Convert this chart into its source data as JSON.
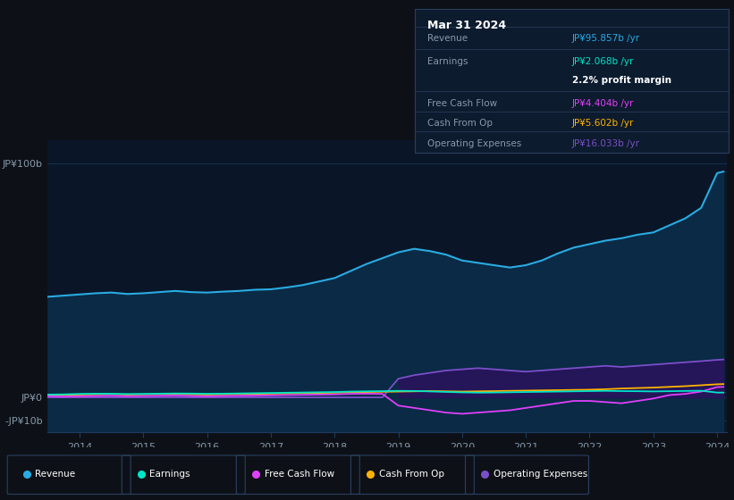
{
  "bg_color": "#0d1117",
  "plot_bg_color": "#0a1628",
  "grid_color": "#1e3a5f",
  "years": [
    2013.5,
    2013.75,
    2014.0,
    2014.25,
    2014.5,
    2014.75,
    2015.0,
    2015.25,
    2015.5,
    2015.75,
    2016.0,
    2016.25,
    2016.5,
    2016.75,
    2017.0,
    2017.25,
    2017.5,
    2017.75,
    2018.0,
    2018.25,
    2018.5,
    2018.75,
    2019.0,
    2019.25,
    2019.5,
    2019.75,
    2020.0,
    2020.25,
    2020.5,
    2020.75,
    2021.0,
    2021.25,
    2021.5,
    2021.75,
    2022.0,
    2022.25,
    2022.5,
    2022.75,
    2023.0,
    2023.25,
    2023.5,
    2023.75,
    2024.0,
    2024.1
  ],
  "revenue": [
    43,
    43.5,
    44,
    44.5,
    44.8,
    44.2,
    44.5,
    45.0,
    45.5,
    45.0,
    44.8,
    45.2,
    45.5,
    46.0,
    46.2,
    47.0,
    48.0,
    49.5,
    51.0,
    54.0,
    57.0,
    59.5,
    62.0,
    63.5,
    62.5,
    61.0,
    58.5,
    57.5,
    56.5,
    55.5,
    56.5,
    58.5,
    61.5,
    64.0,
    65.5,
    67.0,
    68.0,
    69.5,
    70.5,
    73.5,
    76.5,
    81.0,
    95.857,
    96.5
  ],
  "earnings": [
    1.2,
    1.3,
    1.5,
    1.6,
    1.55,
    1.45,
    1.5,
    1.6,
    1.7,
    1.65,
    1.55,
    1.6,
    1.7,
    1.8,
    1.9,
    2.0,
    2.1,
    2.2,
    2.3,
    2.5,
    2.6,
    2.7,
    2.8,
    2.75,
    2.55,
    2.35,
    2.15,
    2.05,
    2.1,
    2.2,
    2.3,
    2.4,
    2.5,
    2.6,
    2.7,
    2.8,
    2.7,
    2.65,
    2.55,
    2.65,
    2.75,
    2.85,
    2.068,
    2.068
  ],
  "free_cash_flow": [
    0.5,
    0.4,
    0.5,
    0.6,
    0.7,
    0.5,
    0.6,
    0.7,
    0.8,
    0.6,
    0.5,
    0.6,
    0.7,
    0.8,
    0.9,
    1.0,
    1.1,
    1.2,
    1.3,
    1.5,
    1.6,
    1.5,
    -3.5,
    -4.5,
    -5.5,
    -6.5,
    -7.0,
    -6.5,
    -6.0,
    -5.5,
    -4.5,
    -3.5,
    -2.5,
    -1.5,
    -1.5,
    -2.0,
    -2.5,
    -1.5,
    -0.5,
    1.0,
    1.5,
    2.5,
    4.404,
    4.5
  ],
  "cash_from_op": [
    1.0,
    1.1,
    1.2,
    1.3,
    1.4,
    1.2,
    1.3,
    1.4,
    1.5,
    1.3,
    1.2,
    1.3,
    1.4,
    1.5,
    1.6,
    1.7,
    1.8,
    1.9,
    2.0,
    2.2,
    2.3,
    2.4,
    2.5,
    2.6,
    2.7,
    2.6,
    2.5,
    2.6,
    2.7,
    2.8,
    2.9,
    3.0,
    3.1,
    3.2,
    3.3,
    3.5,
    3.8,
    4.0,
    4.2,
    4.5,
    4.8,
    5.2,
    5.602,
    5.7
  ],
  "operating_expenses": [
    0.0,
    0.0,
    0.0,
    0.0,
    0.0,
    0.0,
    0.0,
    0.0,
    0.0,
    0.0,
    0.0,
    0.0,
    0.0,
    0.0,
    0.0,
    0.0,
    0.0,
    0.0,
    0.0,
    0.0,
    0.0,
    0.0,
    8.0,
    9.5,
    10.5,
    11.5,
    12.0,
    12.5,
    12.0,
    11.5,
    11.0,
    11.5,
    12.0,
    12.5,
    13.0,
    13.5,
    13.0,
    13.5,
    14.0,
    14.5,
    15.0,
    15.5,
    16.033,
    16.2
  ],
  "colors": {
    "revenue": "#29abe2",
    "revenue_fill": "#0a2a45",
    "earnings": "#00e5c8",
    "free_cash_flow": "#e040fb",
    "cash_from_op": "#ffb300",
    "operating_expenses": "#7b4fc8",
    "operating_expenses_fill": "#2d1060"
  },
  "ylim": [
    -15,
    110
  ],
  "xlim": [
    2013.5,
    2024.15
  ],
  "yticks": [
    100,
    0,
    -10
  ],
  "ytick_labels": [
    "JP¥100b",
    "JP¥0",
    "-JP¥10b"
  ],
  "xtick_years": [
    2014,
    2015,
    2016,
    2017,
    2018,
    2019,
    2020,
    2021,
    2022,
    2023,
    2024
  ],
  "info_box": {
    "title": "Mar 31 2024",
    "title_color": "#ffffff",
    "label_color": "#8899aa",
    "bg": "#0d1b2e",
    "border": "#2a3f5f",
    "rows": [
      {
        "label": "Revenue",
        "value": "JP¥95.857b /yr",
        "value_color": "#29abe2"
      },
      {
        "label": "Earnings",
        "value": "JP¥2.068b /yr",
        "value_color": "#00e5c8"
      },
      {
        "label": "",
        "value": "2.2% profit margin",
        "value_color": "#ffffff",
        "bold": true
      },
      {
        "label": "Free Cash Flow",
        "value": "JP¥4.404b /yr",
        "value_color": "#e040fb"
      },
      {
        "label": "Cash From Op",
        "value": "JP¥5.602b /yr",
        "value_color": "#ffb300"
      },
      {
        "label": "Operating Expenses",
        "value": "JP¥16.033b /yr",
        "value_color": "#7b4fc8"
      }
    ]
  },
  "legend": [
    {
      "label": "Revenue",
      "color": "#29abe2"
    },
    {
      "label": "Earnings",
      "color": "#00e5c8"
    },
    {
      "label": "Free Cash Flow",
      "color": "#e040fb"
    },
    {
      "label": "Cash From Op",
      "color": "#ffb300"
    },
    {
      "label": "Operating Expenses",
      "color": "#7b4fc8"
    }
  ]
}
